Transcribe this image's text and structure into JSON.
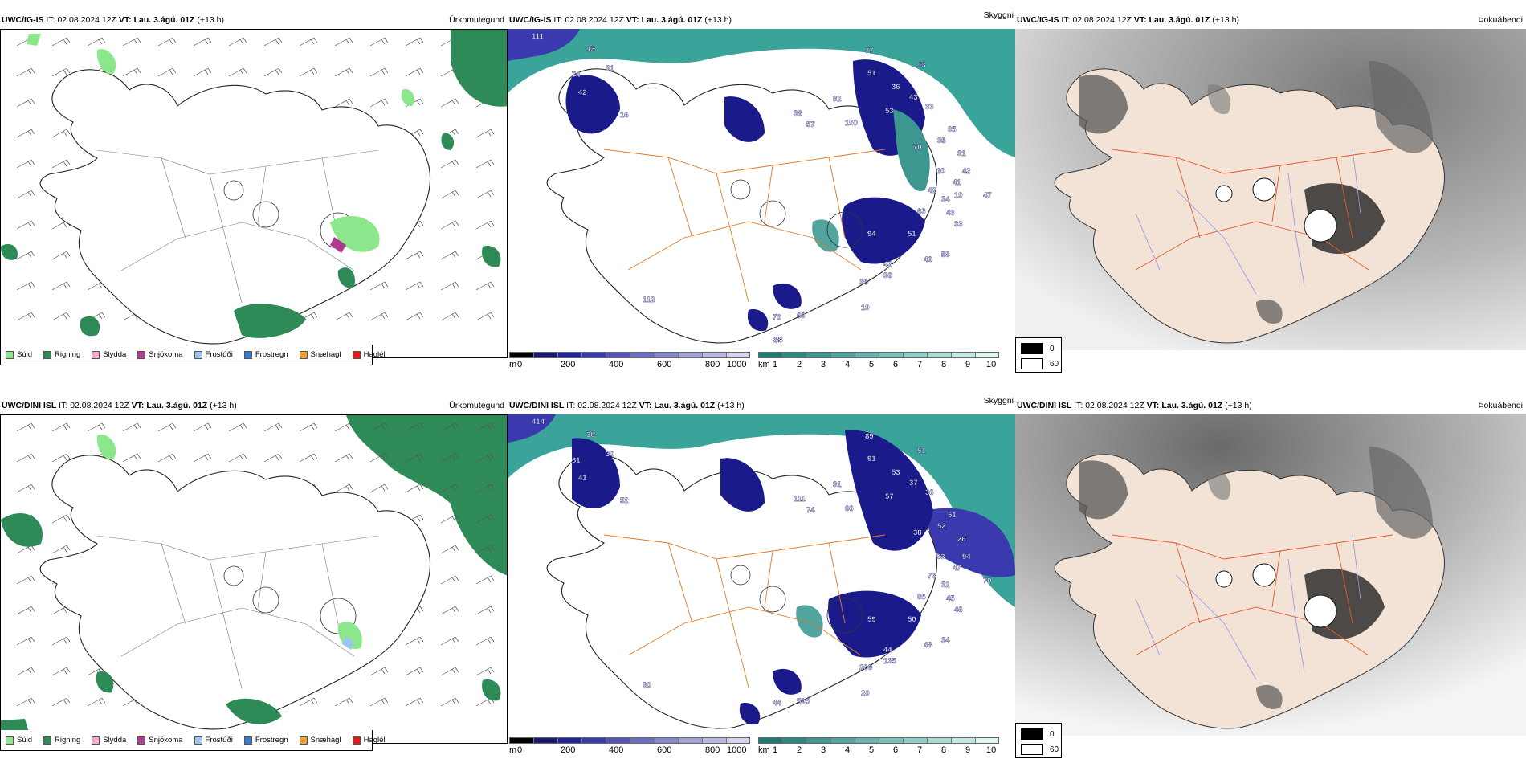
{
  "rows": [
    {
      "model": "UWC/IG-IS",
      "it_label": "IT:",
      "it_value": "02.08.2024 12Z",
      "vt_label": "VT:",
      "vt_value": "Lau. 3.ágú. 01Z",
      "lead": "(+13 h)",
      "visibility_labels": [
        "111",
        "43",
        "74",
        "31",
        "42",
        "16",
        "77",
        "51",
        "43",
        "36",
        "43",
        "53",
        "33",
        "35",
        "35",
        "31",
        "70",
        "42",
        "10",
        "41",
        "42",
        "47",
        "34",
        "63",
        "43",
        "33",
        "94",
        "51",
        "43",
        "46",
        "58",
        "36",
        "35",
        "19",
        "38",
        "57",
        "82",
        "150",
        "112",
        "70",
        "63",
        "58",
        "28",
        "19"
      ]
    },
    {
      "model": "UWC/DINI ISL",
      "it_label": "IT:",
      "it_value": "02.08.2024 12Z",
      "vt_label": "VT:",
      "vt_value": "Lau. 3.ágú. 01Z",
      "lead": "(+13 h)",
      "visibility_labels": [
        "414",
        "36",
        "61",
        "30",
        "41",
        "52",
        "89",
        "91",
        "51",
        "53",
        "37",
        "57",
        "36",
        "51",
        "52",
        "26",
        "38",
        "94",
        "93",
        "47",
        "73",
        "70",
        "32",
        "85",
        "45",
        "46",
        "59",
        "50",
        "44",
        "48",
        "34",
        "135",
        "208",
        "20",
        "111",
        "74",
        "31",
        "66",
        "30",
        "44",
        "595"
      ]
    }
  ],
  "products": {
    "precip": "Úrkomutegund",
    "visibility": "Skyggni",
    "cloud": "Þokuábendi"
  },
  "precip_legend": [
    {
      "label": "Súld",
      "color": "#8ce68c"
    },
    {
      "label": "Rigning",
      "color": "#2e8b57"
    },
    {
      "label": "Slydda",
      "color": "#f4a8d0"
    },
    {
      "label": "Snjókoma",
      "color": "#b03a8c"
    },
    {
      "label": "Frostúði",
      "color": "#9cc6f0"
    },
    {
      "label": "Frostregn",
      "color": "#3a78c8"
    },
    {
      "label": "Snæhagl",
      "color": "#f0a030"
    },
    {
      "label": "Haglél",
      "color": "#e01a1a"
    }
  ],
  "visibility_legend": {
    "m_unit": "m",
    "m_ticks": [
      "0",
      "200",
      "400",
      "600",
      "800",
      "1000"
    ],
    "m_colors": [
      "#000000",
      "#1a1a6e",
      "#22229a",
      "#3a3aae",
      "#5454b8",
      "#6c6cc0",
      "#8686cc",
      "#a0a0d6",
      "#b8b8e0",
      "#d4d4ee"
    ],
    "km_unit": "km",
    "km_ticks": [
      "1",
      "2",
      "3",
      "4",
      "5",
      "6",
      "7",
      "8",
      "9",
      "10"
    ],
    "km_colors": [
      "#1e7a74",
      "#2d8882",
      "#3e9690",
      "#52a49e",
      "#66b2ac",
      "#7cc0ba",
      "#92cec8",
      "#aadcd6",
      "#c4e8e4",
      "#e0f4f2"
    ]
  },
  "cloud_legend": {
    "low_value": "0",
    "low_color": "#000000",
    "high_value": "60",
    "high_color": "#ffffff"
  },
  "colors": {
    "land_cloud_panel": "#f3e3d6",
    "roads": "#e07a2a",
    "rivers": "#8a94e8",
    "sea_vis": "#3aa39a",
    "low_vis": "#1a1a8a",
    "rain": "#2e8b57",
    "drizzle": "#8ce68c"
  }
}
